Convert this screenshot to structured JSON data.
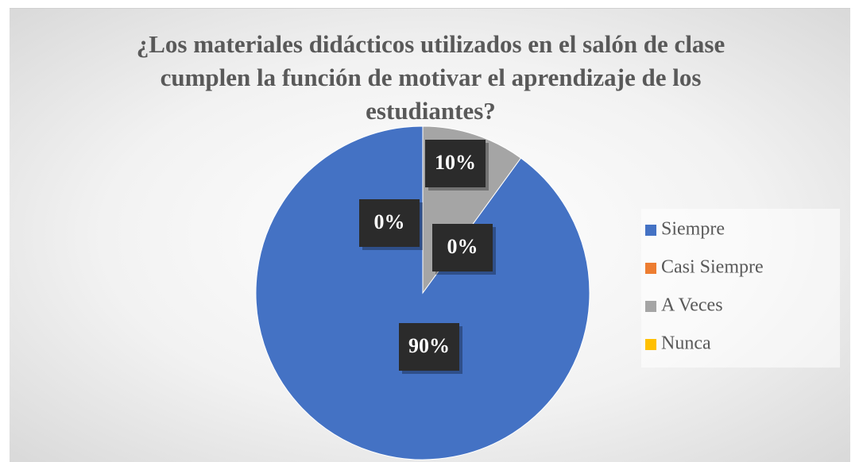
{
  "chart_data": {
    "type": "pie",
    "title": "¿Los materiales didácticos utilizados en el salón de clase cumplen la función de motivar el aprendizaje de los estudiantes?",
    "categories": [
      "Siempre",
      "Casi Siempre",
      "A Veces",
      "Nunca"
    ],
    "values": [
      90,
      0,
      10,
      0
    ],
    "value_labels": [
      "90%",
      "0%",
      "10%",
      "0%"
    ],
    "colors": [
      "#4472c4",
      "#ed7d31",
      "#a5a5a5",
      "#ffc000"
    ],
    "legend": "right"
  }
}
